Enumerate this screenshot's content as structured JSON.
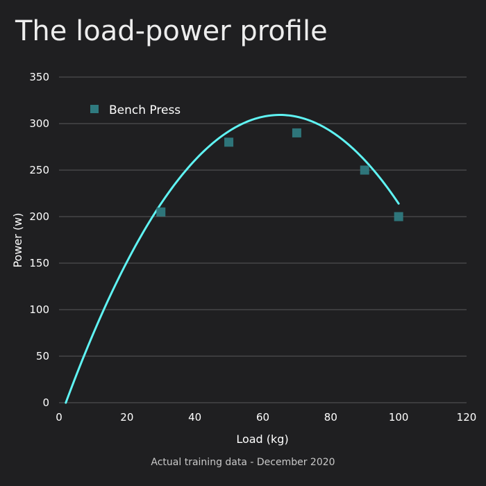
{
  "chart_data": {
    "type": "scatter",
    "title": "The load-power profile",
    "xlabel": "Load (kg)",
    "ylabel": "Power (w)",
    "xlim": [
      0,
      120
    ],
    "ylim": [
      0,
      350
    ],
    "xticks": [
      0,
      20,
      40,
      60,
      80,
      100,
      120
    ],
    "yticks": [
      0,
      50,
      100,
      150,
      200,
      250,
      300,
      350
    ],
    "grid": "horizontal",
    "legend_position": "top-left",
    "caption": "Actual training data - December 2020",
    "series": [
      {
        "name": "Bench Press",
        "type": "scatter",
        "marker": "square",
        "color": "#2f7a7f",
        "x": [
          30,
          50,
          70,
          90,
          100
        ],
        "y": [
          205,
          280,
          290,
          250,
          200
        ]
      }
    ],
    "fit_curve": {
      "type": "quadratic",
      "color": "#5ff3f3",
      "coefficients": {
        "a": -0.0779,
        "b": 10.13,
        "c": -20
      },
      "x_range": [
        2,
        100
      ]
    }
  }
}
